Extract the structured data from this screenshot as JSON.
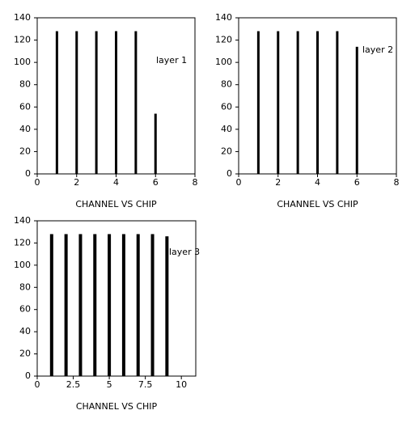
{
  "chart_data": [
    {
      "type": "bar",
      "x": [
        1,
        2,
        3,
        4,
        5,
        6
      ],
      "values": [
        128,
        128,
        128,
        128,
        128,
        54
      ],
      "xlim": [
        0,
        8
      ],
      "xticks": [
        0,
        2,
        4,
        6,
        8
      ],
      "ylim": [
        0,
        140
      ],
      "yticks": [
        0,
        20,
        40,
        60,
        80,
        100,
        120,
        140
      ],
      "xlabel": "CHANNEL VS CHIP",
      "annotation": "layer 1",
      "color": "#000000"
    },
    {
      "type": "bar",
      "x": [
        1,
        2,
        3,
        4,
        5,
        6
      ],
      "values": [
        128,
        128,
        128,
        128,
        128,
        114
      ],
      "xlim": [
        0,
        8
      ],
      "xticks": [
        0,
        2,
        4,
        6,
        8
      ],
      "ylim": [
        0,
        140
      ],
      "yticks": [
        0,
        20,
        40,
        60,
        80,
        100,
        120,
        140
      ],
      "xlabel": "CHANNEL VS CHIP",
      "annotation": "layer 2",
      "color": "#000000"
    },
    {
      "type": "bar",
      "x": [
        1,
        2,
        3,
        4,
        5,
        6,
        7,
        8,
        9
      ],
      "values": [
        128,
        128,
        128,
        128,
        128,
        128,
        128,
        128,
        126
      ],
      "xlim": [
        0,
        11
      ],
      "xticks": [
        0,
        2.5,
        5,
        7.5,
        10
      ],
      "ylim": [
        0,
        140
      ],
      "yticks": [
        0,
        20,
        40,
        60,
        80,
        100,
        120,
        140
      ],
      "xlabel": "CHANNEL VS CHIP",
      "annotation": "layer 3",
      "color": "#000000"
    }
  ]
}
